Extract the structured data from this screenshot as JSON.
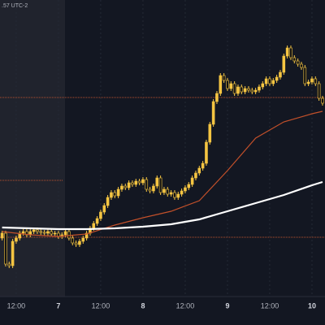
{
  "chart_data": {
    "type": "candlestick",
    "subtitle": ".57 UTC-2",
    "xlim": [
      -4.6,
      87.7
    ],
    "ylim": [
      0,
      365
    ],
    "xticks": [
      {
        "value": 0,
        "label": "12:00"
      },
      {
        "value": 12,
        "label": "7"
      },
      {
        "value": 24,
        "label": "12:00"
      },
      {
        "value": 36,
        "label": "8"
      },
      {
        "value": 48,
        "label": "12:00"
      },
      {
        "value": 60,
        "label": "9"
      },
      {
        "value": 72,
        "label": "12:00"
      },
      {
        "value": 84,
        "label": "10"
      }
    ],
    "up_color": "#f5c542",
    "down_color": "#141414",
    "x": [
      -4,
      -3,
      -2,
      -1,
      0,
      1,
      2,
      3,
      4,
      5,
      6,
      7,
      8,
      9,
      10,
      11,
      12,
      13,
      14,
      15,
      16,
      17,
      18,
      19,
      20,
      21,
      22,
      23,
      24,
      25,
      26,
      27,
      28,
      29,
      30,
      31,
      32,
      33,
      34,
      35,
      36,
      37,
      38,
      39,
      40,
      41,
      42,
      43,
      44,
      45,
      46,
      47,
      48,
      49,
      50,
      51,
      52,
      53,
      54,
      55,
      56,
      57,
      58,
      59,
      60,
      61,
      62,
      63,
      64,
      65,
      66,
      67,
      68,
      69,
      70,
      71,
      72,
      73,
      74,
      75,
      76,
      77,
      78,
      79,
      80,
      81,
      82,
      83,
      84,
      85,
      86,
      87
    ],
    "open": [
      72,
      78,
      40,
      38,
      68,
      72,
      78,
      80,
      76,
      80,
      82,
      80,
      79,
      78,
      80,
      77,
      78,
      74,
      76,
      80,
      72,
      66,
      64,
      68,
      72,
      78,
      84,
      90,
      96,
      104,
      112,
      122,
      128,
      124,
      132,
      136,
      134,
      140,
      138,
      142,
      140,
      144,
      132,
      130,
      136,
      146,
      128,
      132,
      126,
      128,
      122,
      126,
      130,
      134,
      138,
      146,
      152,
      158,
      164,
      190,
      212,
      240,
      250,
      272,
      266,
      256,
      262,
      250,
      258,
      252,
      256,
      254,
      252,
      254,
      258,
      262,
      268,
      262,
      266,
      270,
      276,
      296,
      306,
      294,
      290,
      286,
      282,
      262,
      264,
      268,
      262,
      244
    ],
    "high": [
      81,
      81,
      43,
      71,
      75,
      81,
      83,
      83,
      83,
      85,
      85,
      83,
      82,
      83,
      83,
      81,
      81,
      79,
      83,
      83,
      75,
      69,
      71,
      75,
      81,
      87,
      93,
      99,
      107,
      115,
      125,
      131,
      131,
      135,
      139,
      139,
      143,
      143,
      145,
      145,
      147,
      147,
      135,
      139,
      149,
      149,
      135,
      135,
      131,
      131,
      129,
      133,
      137,
      141,
      149,
      155,
      161,
      167,
      193,
      215,
      243,
      253,
      275,
      275,
      269,
      265,
      265,
      261,
      261,
      259,
      259,
      257,
      257,
      261,
      265,
      271,
      271,
      269,
      273,
      279,
      299,
      309,
      309,
      297,
      293,
      289,
      285,
      267,
      271,
      271,
      265,
      247
    ],
    "low": [
      69,
      37,
      35,
      35,
      65,
      69,
      75,
      73,
      73,
      77,
      77,
      76,
      75,
      75,
      74,
      74,
      71,
      71,
      73,
      69,
      63,
      61,
      61,
      65,
      69,
      75,
      81,
      87,
      93,
      101,
      109,
      119,
      121,
      121,
      129,
      131,
      131,
      135,
      135,
      137,
      137,
      129,
      127,
      127,
      133,
      125,
      125,
      123,
      123,
      119,
      119,
      123,
      127,
      131,
      135,
      143,
      149,
      155,
      161,
      187,
      209,
      237,
      247,
      263,
      253,
      253,
      247,
      247,
      249,
      249,
      251,
      249,
      249,
      251,
      255,
      259,
      259,
      259,
      263,
      267,
      273,
      293,
      291,
      287,
      283,
      279,
      259,
      259,
      261,
      259,
      241,
      235
    ],
    "close": [
      78,
      40,
      38,
      68,
      72,
      78,
      80,
      76,
      80,
      82,
      80,
      79,
      78,
      80,
      77,
      78,
      74,
      76,
      80,
      72,
      66,
      64,
      68,
      72,
      78,
      84,
      90,
      96,
      104,
      112,
      122,
      128,
      124,
      132,
      136,
      134,
      140,
      138,
      142,
      140,
      144,
      132,
      130,
      136,
      146,
      128,
      132,
      126,
      128,
      122,
      126,
      130,
      134,
      138,
      146,
      152,
      158,
      164,
      190,
      212,
      240,
      250,
      272,
      266,
      256,
      262,
      250,
      258,
      252,
      256,
      254,
      252,
      254,
      258,
      262,
      268,
      262,
      266,
      270,
      276,
      296,
      306,
      294,
      290,
      286,
      282,
      262,
      264,
      268,
      262,
      244,
      238
    ],
    "series": [
      {
        "color": "#c2502a",
        "x": [
          -4,
          4,
          12,
          20,
          28,
          36,
          44,
          52,
          60,
          68,
          76,
          84,
          87
        ],
        "values": [
          80,
          76,
          74,
          77,
          88,
          97,
          105,
          118,
          155,
          195,
          215,
          225,
          228
        ]
      },
      {
        "color": "#ffffff",
        "x": [
          -4,
          4,
          12,
          20,
          28,
          36,
          44,
          52,
          60,
          68,
          76,
          84,
          87
        ],
        "values": [
          85,
          84,
          83,
          83,
          84,
          86,
          89,
          95,
          105,
          115,
          125,
          137,
          141
        ]
      }
    ],
    "levels": [
      245,
      143,
      73
    ],
    "level_color": "#b8502f"
  }
}
